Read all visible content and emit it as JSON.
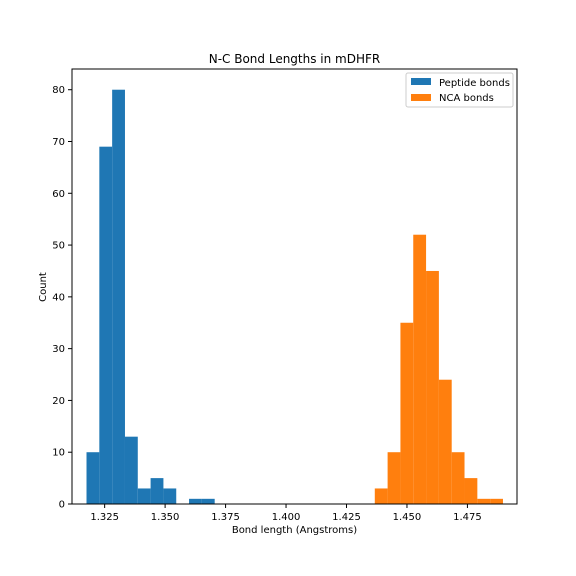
{
  "chart_data": {
    "type": "histogram",
    "title": "N-C Bond Lengths in mDHFR",
    "xlabel": "Bond length (Angstroms)",
    "ylabel": "Count",
    "xlim": [
      1.3115,
      1.4955
    ],
    "ylim": [
      0,
      84
    ],
    "xticks": [
      1.325,
      1.35,
      1.375,
      1.4,
      1.425,
      1.45,
      1.475
    ],
    "xtick_labels": [
      "1.325",
      "1.350",
      "1.375",
      "1.400",
      "1.425",
      "1.450",
      "1.475"
    ],
    "yticks": [
      0,
      10,
      20,
      30,
      40,
      50,
      60,
      70,
      80
    ],
    "ytick_labels": [
      "0",
      "10",
      "20",
      "30",
      "40",
      "50",
      "60",
      "70",
      "80"
    ],
    "legend_position": "top-right",
    "grid": false,
    "series": [
      {
        "name": "Peptide bonds",
        "color": "#1f77b4",
        "bins": [
          [
            1.3175,
            1.3228,
            10
          ],
          [
            1.3228,
            1.3281,
            69
          ],
          [
            1.3281,
            1.3334,
            80
          ],
          [
            1.3334,
            1.3387,
            13
          ],
          [
            1.3387,
            1.344,
            3
          ],
          [
            1.344,
            1.3493,
            5
          ],
          [
            1.3493,
            1.3546,
            3
          ],
          [
            1.3599,
            1.3652,
            1
          ],
          [
            1.3652,
            1.3705,
            1
          ]
        ]
      },
      {
        "name": "NCA bonds",
        "color": "#ff7f0e",
        "bins": [
          [
            1.4367,
            1.442,
            3
          ],
          [
            1.442,
            1.4473,
            10
          ],
          [
            1.4473,
            1.4526,
            35
          ],
          [
            1.4526,
            1.4579,
            52
          ],
          [
            1.4579,
            1.4632,
            45
          ],
          [
            1.4632,
            1.4685,
            24
          ],
          [
            1.4685,
            1.4738,
            10
          ],
          [
            1.4738,
            1.4791,
            5
          ],
          [
            1.4791,
            1.4844,
            1
          ],
          [
            1.4844,
            1.4897,
            1
          ]
        ]
      }
    ]
  }
}
